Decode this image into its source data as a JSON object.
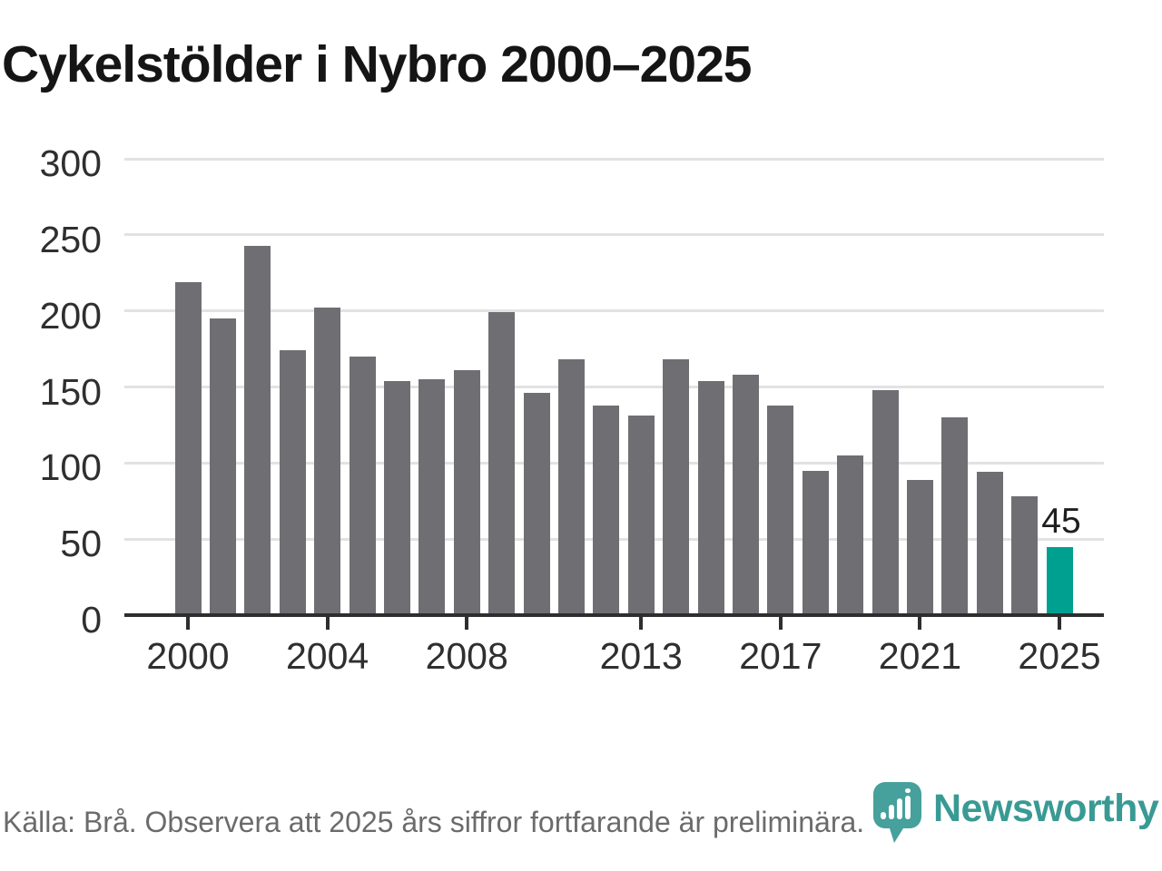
{
  "title": "Cykelstölder i Nybro 2000–2025",
  "chart_data": {
    "type": "bar",
    "x": [
      2000,
      2001,
      2002,
      2003,
      2004,
      2005,
      2006,
      2007,
      2008,
      2009,
      2010,
      2011,
      2012,
      2013,
      2014,
      2015,
      2016,
      2017,
      2018,
      2019,
      2020,
      2021,
      2022,
      2023,
      2024,
      2025
    ],
    "values": [
      219,
      195,
      243,
      174,
      202,
      170,
      154,
      155,
      161,
      199,
      146,
      168,
      138,
      131,
      168,
      154,
      158,
      138,
      95,
      105,
      148,
      89,
      130,
      94,
      78,
      45
    ],
    "title": "Cykelstölder i Nybro 2000–2025",
    "xlabel": "",
    "ylabel": "",
    "ylim": [
      0,
      300
    ],
    "y_ticks": [
      0,
      50,
      100,
      150,
      200,
      250,
      300
    ],
    "x_tick_labels": [
      "2000",
      "2004",
      "2008",
      "2013",
      "2017",
      "2021",
      "2025"
    ],
    "grid": true,
    "legend_position": "none",
    "bar_color": "#6f6e73",
    "highlight_year": 2025,
    "highlight_color": "#00a091",
    "highlight_value_label": "45"
  },
  "footer": {
    "source_note": "Källa: Brå. Observera att 2025 års siffror fortfarande är preliminära."
  },
  "logo": {
    "text": "Newsworthy",
    "brand_color": "#399a94",
    "pin_color": "#46a09b",
    "icon": "newsworthy-pin-bar-chart"
  }
}
